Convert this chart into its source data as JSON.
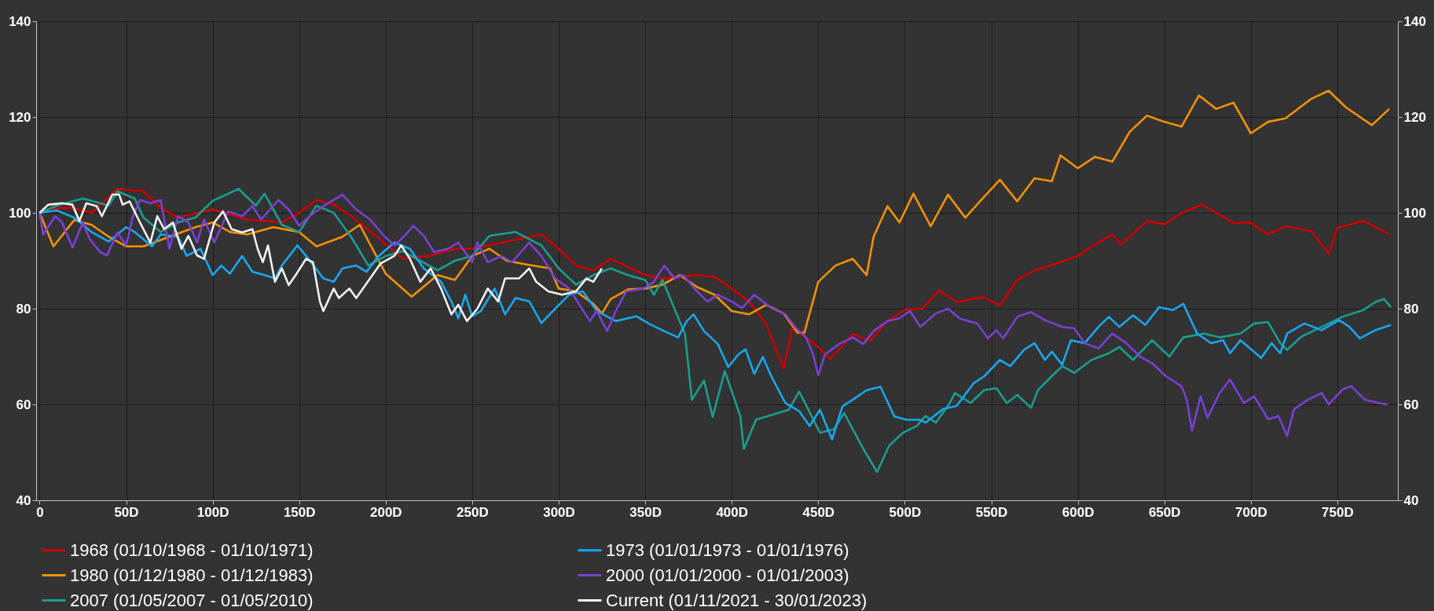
{
  "chart_data": {
    "type": "line",
    "xlim": [
      -2,
      785
    ],
    "xticks": [
      0,
      {
        "value": 50,
        "label": "50D"
      },
      {
        "value": 100,
        "label": "100D"
      },
      {
        "value": 150,
        "label": "150D"
      },
      {
        "value": 200,
        "label": "200D"
      },
      {
        "value": 250,
        "label": "250D"
      },
      {
        "value": 300,
        "label": "300D"
      },
      {
        "value": 350,
        "label": "350D"
      },
      {
        "value": 400,
        "label": "400D"
      },
      {
        "value": 450,
        "label": "450D"
      },
      {
        "value": 500,
        "label": "500D"
      },
      {
        "value": 550,
        "label": "550D"
      },
      {
        "value": 600,
        "label": "600D"
      },
      {
        "value": 650,
        "label": "650D"
      },
      {
        "value": 700,
        "label": "700D"
      },
      {
        "value": 750,
        "label": "750D"
      }
    ],
    "ylim": [
      40,
      140
    ],
    "yticks": [
      40,
      60,
      80,
      100,
      120,
      140
    ],
    "y2lim": [
      40,
      140
    ],
    "y2ticks": [
      40,
      60,
      80,
      100,
      120,
      140
    ],
    "grid": true,
    "legend": "bottom",
    "marker": "none",
    "line_style": "solid",
    "series": [
      {
        "name": "1968 (01/10/1968 - 01/10/1971)",
        "color": "#d00000",
        "x": [
          0,
          10,
          20,
          30,
          45,
          60,
          70,
          80,
          100,
          120,
          140,
          150,
          160,
          170,
          180,
          195,
          210,
          225,
          240,
          250,
          270,
          290,
          300,
          310,
          320,
          330,
          350,
          360,
          380,
          390,
          400,
          410,
          420,
          430,
          435,
          440,
          450,
          457,
          470,
          480,
          490,
          500,
          510,
          520,
          530,
          545,
          555,
          565,
          575,
          590,
          600,
          610,
          620,
          625,
          640,
          650,
          660,
          672,
          680,
          690,
          700,
          710,
          720,
          735,
          745,
          750,
          765,
          780
        ],
        "values": [
          100,
          101,
          101,
          100,
          105,
          104.5,
          101,
          99,
          100.7,
          98.6,
          98,
          100,
          102.7,
          101.7,
          99.3,
          95,
          90.4,
          91,
          92.5,
          92.5,
          94,
          95.5,
          92.5,
          89,
          88,
          90.4,
          87,
          86.3,
          87,
          86.6,
          84.2,
          81.5,
          76.7,
          67.5,
          76,
          74.7,
          72,
          69.5,
          74.7,
          73.3,
          77.4,
          79.8,
          80,
          83.8,
          81.4,
          82.4,
          80.7,
          86,
          88,
          89.7,
          91,
          93.4,
          95.5,
          93.4,
          98.3,
          97.6,
          100,
          101.7,
          100,
          97.9,
          97.9,
          95.5,
          97.2,
          96.2,
          91.4,
          96.9,
          98.3,
          95.5
        ]
      },
      {
        "name": "1980 (01/12/1980 - 01/12/1983)",
        "color": "#f39200",
        "x": [
          0,
          8,
          20,
          30,
          40,
          50,
          60,
          75,
          90,
          100,
          110,
          120,
          135,
          150,
          160,
          175,
          185,
          200,
          215,
          230,
          240,
          250,
          260,
          270,
          280,
          295,
          300,
          310,
          320,
          325,
          330,
          340,
          350,
          360,
          370,
          380,
          390,
          400,
          410,
          420,
          430,
          438,
          442,
          450,
          460,
          470,
          478,
          482,
          490,
          497,
          505,
          515,
          525,
          535,
          545,
          555,
          565,
          575,
          585,
          590,
          600,
          610,
          620,
          630,
          640,
          650,
          660,
          670,
          680,
          690,
          700,
          710,
          720,
          735,
          745,
          755,
          770,
          780
        ],
        "values": [
          100,
          93,
          98.5,
          97.5,
          95,
          93,
          93,
          95,
          97,
          98,
          96,
          95.5,
          97,
          96,
          93,
          95,
          97.5,
          87.3,
          82.5,
          87,
          86,
          91,
          92.5,
          90,
          89.3,
          88.4,
          84.2,
          83.6,
          81,
          79,
          82,
          84,
          84.2,
          85,
          87,
          84.5,
          82.9,
          79.5,
          78.8,
          80.8,
          79,
          75,
          75,
          85.6,
          89,
          90.4,
          87,
          95,
          101.4,
          98,
          104,
          97.2,
          103.8,
          99,
          103,
          106.9,
          102.4,
          107.2,
          106.6,
          112,
          109.3,
          111.7,
          110.7,
          116.9,
          120.3,
          119,
          118,
          124.5,
          121.7,
          123,
          116.6,
          119,
          119.7,
          123.8,
          125.5,
          122,
          118.3,
          121.7
        ]
      },
      {
        "name": "2007 (01/05/2007 - 01/05/2010)",
        "color": "#1a9e8f",
        "x": [
          0,
          10,
          25,
          40,
          45,
          55,
          60,
          70,
          80,
          90,
          100,
          115,
          125,
          130,
          140,
          150,
          160,
          170,
          180,
          190,
          200,
          210,
          220,
          230,
          240,
          250,
          260,
          275,
          290,
          300,
          310,
          320,
          330,
          340,
          350,
          355,
          360,
          373,
          377,
          384,
          389,
          396,
          405,
          407,
          414,
          433,
          439,
          451,
          459,
          465,
          475,
          484,
          491,
          499,
          507,
          512,
          518,
          526,
          529,
          538,
          546,
          553,
          559,
          565,
          573,
          577,
          585,
          591,
          598,
          608,
          618,
          624,
          632,
          643,
          653,
          661,
          673,
          682,
          694,
          702,
          710,
          717,
          721,
          729,
          741,
          753,
          765,
          772,
          777,
          781
        ],
        "values": [
          100,
          101.5,
          103,
          101.5,
          104.5,
          103,
          99,
          96,
          98,
          99,
          102.5,
          105,
          101.5,
          104,
          97.5,
          96,
          101.5,
          100,
          95,
          89,
          91,
          92,
          90,
          88,
          90,
          91,
          95.2,
          96,
          93.2,
          88.4,
          85,
          87,
          88.4,
          87,
          86,
          82.9,
          86,
          74.7,
          61,
          65,
          57.4,
          67,
          57.5,
          50.7,
          56.8,
          58.9,
          62.7,
          54.1,
          54.8,
          58.2,
          51.4,
          45.9,
          51.4,
          54.1,
          55.5,
          57.6,
          56.2,
          60.3,
          62.4,
          60.3,
          63,
          63.4,
          60.3,
          62,
          59.3,
          63,
          65.9,
          68,
          66.6,
          69.3,
          70.7,
          72,
          69.3,
          73.4,
          70,
          74,
          74.8,
          74,
          74.8,
          76.9,
          77.2,
          72.8,
          71.4,
          74.1,
          76.2,
          78.3,
          79.7,
          81.4,
          82,
          80.3
        ]
      },
      {
        "name": "1973 (01/01/1973 - 01/01/1976)",
        "color": "#19a7f0",
        "x": [
          0,
          10,
          20,
          30,
          40,
          50,
          55,
          65,
          70,
          80,
          85,
          93,
          100,
          105,
          110,
          117,
          123,
          130,
          136,
          140,
          149,
          154,
          164,
          170,
          175,
          183,
          189,
          196,
          205,
          214,
          222,
          232,
          238,
          242,
          246,
          250,
          255,
          263,
          269,
          275,
          283,
          290,
          298,
          306,
          314,
          322,
          333,
          345,
          353,
          361,
          369,
          374,
          378,
          384,
          392,
          398,
          404,
          408,
          413,
          418,
          423,
          431,
          439,
          445,
          451,
          458,
          464,
          470,
          478,
          486,
          494,
          501,
          509,
          512,
          522,
          530,
          540,
          546,
          555,
          561,
          569,
          575,
          581,
          585,
          591,
          596,
          604,
          612,
          618,
          624,
          632,
          639,
          647,
          655,
          661,
          669,
          677,
          684,
          688,
          694,
          706,
          712,
          717,
          721,
          731,
          741,
          751,
          757,
          763,
          772,
          781
        ],
        "values": [
          100,
          100.5,
          99,
          96,
          94,
          97,
          96,
          93,
          95.5,
          95,
          91,
          92.5,
          87,
          89,
          87.3,
          91,
          87.7,
          87,
          86.3,
          89,
          93.2,
          91,
          86.3,
          85.6,
          88.4,
          89,
          87.7,
          91,
          93.8,
          92.5,
          88.4,
          85.6,
          81.5,
          78,
          82.9,
          78.4,
          79.5,
          84.2,
          78.8,
          82.2,
          81.5,
          77,
          80,
          82.9,
          83.6,
          79.5,
          77.4,
          78.4,
          76.7,
          75.3,
          74,
          77.4,
          78.8,
          75.3,
          72.6,
          67.8,
          70.5,
          71.5,
          66.4,
          69.9,
          65.8,
          60.3,
          58.6,
          55.5,
          58.9,
          52.7,
          59.6,
          61,
          63,
          63.7,
          57.5,
          56.8,
          56.8,
          56.2,
          59,
          59.7,
          64.5,
          65.9,
          69.3,
          68,
          71.4,
          72.8,
          69.3,
          71,
          68.3,
          73.4,
          72.8,
          76.2,
          78.3,
          76.2,
          78.6,
          76.6,
          80.3,
          79.7,
          81,
          74.8,
          72.8,
          73.4,
          70.7,
          73.4,
          69.7,
          72.8,
          70.7,
          74.8,
          76.9,
          75.5,
          77.6,
          76.2,
          73.8,
          75.5,
          76.6
        ]
      },
      {
        "name": "2000 (01/01/2000 - 01/01/2003)",
        "color": "#7b3fd6",
        "x": [
          0,
          2,
          9,
          13,
          19,
          25,
          29,
          35,
          39,
          45,
          50,
          54,
          58,
          64,
          70,
          75,
          80,
          86,
          91,
          95,
          101,
          109,
          117,
          123,
          128,
          138,
          144,
          150,
          156,
          164,
          175,
          183,
          191,
          199,
          205,
          211,
          216,
          222,
          228,
          236,
          242,
          250,
          253,
          259,
          267,
          273,
          283,
          290,
          298,
          306,
          312,
          318,
          322,
          328,
          333,
          339,
          349,
          355,
          361,
          367,
          372,
          380,
          386,
          392,
          400,
          406,
          413,
          423,
          431,
          437,
          443,
          447,
          450,
          454,
          462,
          470,
          476,
          482,
          490,
          497,
          503,
          509,
          518,
          525,
          532,
          542,
          548,
          553,
          557,
          565,
          573,
          581,
          591,
          598,
          604,
          612,
          620,
          628,
          636,
          643,
          651,
          660,
          663,
          666,
          671,
          675,
          682,
          688,
          696,
          702,
          710,
          716,
          721,
          725,
          733,
          741,
          745,
          753,
          758,
          766,
          774,
          779
        ],
        "values": [
          100,
          95.5,
          99.3,
          98,
          92.8,
          98,
          94.5,
          91.8,
          91.1,
          95.9,
          93.2,
          99.3,
          102.7,
          102,
          102.7,
          92.5,
          99.3,
          98,
          93.8,
          98.6,
          93.8,
          100.3,
          99.3,
          101.4,
          98.6,
          102.7,
          100.7,
          97.3,
          99.3,
          101.4,
          103.8,
          100.7,
          98.6,
          95.2,
          93.2,
          95.2,
          97.3,
          95.2,
          91.8,
          92.5,
          93.8,
          89.7,
          93.8,
          89.7,
          91,
          89.7,
          93.8,
          91,
          86.3,
          84.2,
          80.8,
          77.4,
          79.5,
          75.3,
          79.5,
          83.6,
          84.2,
          85.6,
          89,
          86.3,
          87,
          83.6,
          81.5,
          82.9,
          81.5,
          80.1,
          82.9,
          80.1,
          78.8,
          76,
          74,
          70.5,
          66.1,
          70.5,
          72.6,
          74,
          72.6,
          75.3,
          77.4,
          78,
          79.5,
          76.2,
          79,
          80,
          77.9,
          76.9,
          73.8,
          75.5,
          73.8,
          78.3,
          79.3,
          77.6,
          76.2,
          75.9,
          72.8,
          71.7,
          74.8,
          72.8,
          70,
          68.6,
          65.9,
          63.8,
          61,
          54.5,
          61.7,
          57.2,
          62.4,
          65.2,
          60.3,
          61.7,
          56.9,
          57.6,
          53.4,
          59,
          61,
          62.4,
          60,
          63.1,
          63.8,
          61,
          60.3,
          60
        ]
      },
      {
        "name": "Current (01/11/2021 - 30/01/2023)",
        "color": "#f2f2f2",
        "x": [
          0,
          5,
          13,
          19,
          23,
          27,
          33,
          36,
          42,
          46,
          48,
          52,
          58,
          64,
          68,
          72,
          77,
          82,
          86,
          91,
          95,
          101,
          106,
          111,
          117,
          123,
          126,
          129,
          132,
          136,
          140,
          144,
          148,
          154,
          158,
          162,
          164,
          170,
          173,
          179,
          183,
          191,
          197,
          205,
          209,
          214,
          220,
          226,
          232,
          238,
          242,
          247,
          253,
          259,
          265,
          269,
          277,
          283,
          287,
          294,
          302,
          310,
          316,
          320,
          325
        ],
        "values": [
          100,
          101.7,
          102,
          101.7,
          98.3,
          102,
          101.4,
          99.3,
          103.8,
          103.8,
          101.7,
          102.4,
          98,
          93.8,
          99.3,
          96.6,
          98,
          92.5,
          95.2,
          91.1,
          90.4,
          98,
          100.3,
          96.6,
          95.9,
          96.6,
          92.5,
          89.7,
          93.2,
          85.6,
          88.4,
          84.9,
          87,
          90.4,
          89.7,
          81.5,
          79.5,
          84.2,
          82.2,
          84.2,
          82.2,
          86.3,
          89.4,
          91,
          93.2,
          90.4,
          85.6,
          88.4,
          84.2,
          78.8,
          80.8,
          77.4,
          80,
          84.2,
          81.5,
          86.3,
          86.3,
          88.4,
          85.6,
          83.6,
          82.9,
          83.6,
          86.3,
          85.6,
          88.4
        ]
      }
    ]
  }
}
